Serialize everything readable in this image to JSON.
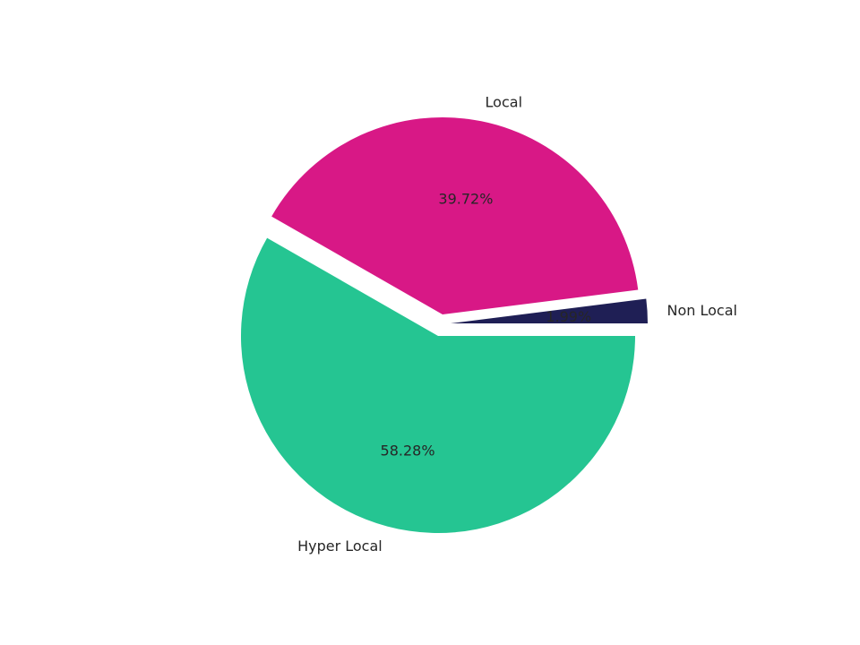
{
  "chart_data": {
    "type": "pie",
    "title": "",
    "categories": [
      "Non Local",
      "Local",
      "Hyper Local"
    ],
    "values": [
      1.99,
      39.72,
      58.28
    ],
    "value_labels": [
      "1.99%",
      "39.72%",
      "58.28%"
    ],
    "colors": [
      "#1f1f55",
      "#d81886",
      "#25c592"
    ],
    "explode": [
      true,
      true,
      false
    ],
    "start_angle_deg": 0,
    "counterclockwise": true,
    "legend": false
  }
}
